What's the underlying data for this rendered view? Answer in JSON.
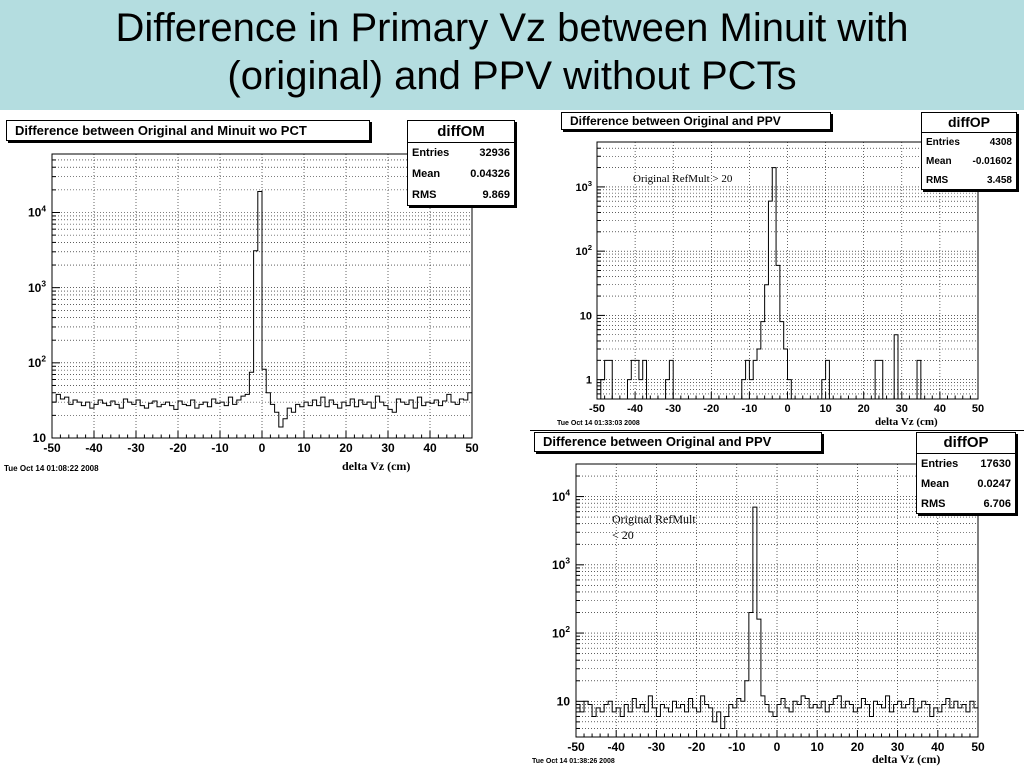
{
  "slide_title_line1": "Difference in Primary Vz between Minuit with",
  "slide_title_line2": "(original) and PPV without PCTs",
  "colors": {
    "title_band": "#b4dde0",
    "axes": "#000000",
    "grid": "#000000"
  },
  "chart_data": [
    {
      "type": "histogram",
      "title": "Difference between Original and Minuit wo PCT",
      "xlabel": "delta Vz (cm)",
      "ylabel": "",
      "xlim": [
        -50,
        50
      ],
      "ylim": [
        10,
        60000
      ],
      "y_scale": "log",
      "grid": true,
      "timestamp": "Tue Oct 14 01:08:22 2008",
      "annotation": "",
      "x_tick_labels": [
        "-50",
        "-40",
        "-30",
        "-20",
        "-10",
        "0",
        "10",
        "20",
        "30",
        "40",
        "50"
      ],
      "y_ticks": [
        {
          "base": "10",
          "exp": ""
        },
        {
          "base": "10",
          "exp": "2"
        },
        {
          "base": "10",
          "exp": "3"
        },
        {
          "base": "10",
          "exp": "4"
        }
      ],
      "stats": {
        "name": "diffOM",
        "entries_label": "Entries",
        "entries": "32936",
        "mean_label": "Mean",
        "mean": "0.04326",
        "rms_label": "RMS",
        "rms": "9.869"
      },
      "bin_width": 1,
      "values": [
        30,
        38,
        33,
        35,
        28,
        32,
        30,
        27,
        30,
        25,
        28,
        32,
        29,
        27,
        31,
        28,
        25,
        33,
        30,
        28,
        32,
        27,
        25,
        29,
        31,
        26,
        28,
        30,
        27,
        24,
        31,
        28,
        27,
        32,
        25,
        28,
        30,
        26,
        33,
        29,
        30,
        27,
        35,
        28,
        32,
        36,
        38,
        75,
        3100,
        19000,
        82,
        40,
        28,
        22,
        14,
        18,
        25,
        22,
        28,
        26,
        30,
        27,
        32,
        27,
        35,
        26,
        32,
        28,
        25,
        30,
        27,
        33,
        26,
        32,
        28,
        30,
        25,
        36,
        30,
        27,
        24,
        22,
        33,
        30,
        28,
        32,
        25,
        35,
        27,
        30,
        29,
        32,
        27,
        31,
        38,
        30,
        28,
        33,
        32,
        40
      ]
    },
    {
      "type": "histogram",
      "title": "Difference between Original and PPV",
      "xlabel": "delta Vz (cm)",
      "ylabel": "",
      "xlim": [
        -50,
        50
      ],
      "ylim": [
        0.5,
        5000
      ],
      "y_scale": "log",
      "grid": true,
      "timestamp": "Tue Oct 14 01:33:03 2008",
      "annotation": "Original RefMult > 20",
      "x_tick_labels": [
        "-50",
        "-40",
        "-30",
        "-20",
        "-10",
        "0",
        "10",
        "20",
        "30",
        "40",
        "50"
      ],
      "y_ticks": [
        {
          "base": "1",
          "exp": ""
        },
        {
          "base": "10",
          "exp": ""
        },
        {
          "base": "10",
          "exp": "2"
        },
        {
          "base": "10",
          "exp": "3"
        }
      ],
      "stats": {
        "name": "diffOP",
        "entries_label": "Entries",
        "entries": "4308",
        "mean_label": "Mean",
        "mean": "-0.01602",
        "rms_label": "RMS",
        "rms": "3.458"
      },
      "bin_width": 1,
      "values": [
        0,
        1,
        2,
        2,
        0,
        0,
        0,
        0,
        1,
        2,
        2,
        1,
        2,
        0,
        0,
        0,
        0,
        0,
        1,
        2,
        0,
        0,
        0,
        0,
        0,
        0,
        0,
        0,
        0,
        0,
        0,
        0,
        0,
        0,
        0,
        0,
        0,
        0,
        1,
        2,
        1,
        2,
        3,
        8,
        30,
        600,
        2000,
        60,
        8,
        3,
        1,
        0,
        0,
        0,
        0,
        0,
        0,
        0,
        0,
        1,
        2,
        0,
        0,
        0,
        0,
        0,
        0,
        0,
        0,
        0,
        0,
        0,
        0,
        2,
        2,
        0,
        0,
        0,
        5,
        0,
        0,
        0,
        0,
        0,
        2,
        0,
        0,
        0,
        0,
        0,
        0,
        0,
        0,
        0,
        0,
        0,
        0,
        0,
        0,
        0
      ]
    },
    {
      "type": "histogram",
      "title": "Difference between Original and PPV",
      "xlabel": "delta Vz (cm)",
      "ylabel": "",
      "xlim": [
        -50,
        50
      ],
      "ylim": [
        3,
        30000
      ],
      "y_scale": "log",
      "grid": true,
      "timestamp": "Tue Oct 14 01:38:26 2008",
      "annotation": "Original RefMult\n< 20",
      "x_tick_labels": [
        "-50",
        "-40",
        "-30",
        "-20",
        "-10",
        "0",
        "10",
        "20",
        "30",
        "40",
        "50"
      ],
      "y_ticks": [
        {
          "base": "10",
          "exp": ""
        },
        {
          "base": "10",
          "exp": "2"
        },
        {
          "base": "10",
          "exp": "3"
        },
        {
          "base": "10",
          "exp": "4"
        }
      ],
      "stats": {
        "name": "diffOP",
        "entries_label": "Entries",
        "entries": "17630",
        "mean_label": "Mean",
        "mean": "0.0247",
        "rms_label": "RMS",
        "rms": "6.706"
      },
      "bin_width": 1,
      "values": [
        9,
        7,
        10,
        9,
        6,
        8,
        7,
        9,
        10,
        7,
        8,
        6,
        9,
        7,
        11,
        8,
        9,
        7,
        12,
        8,
        6,
        9,
        8,
        7,
        10,
        8,
        9,
        7,
        11,
        8,
        7,
        12,
        9,
        8,
        5,
        7,
        4,
        6,
        9,
        8,
        11,
        10,
        20,
        200,
        7000,
        160,
        12,
        9,
        7,
        6,
        9,
        11,
        8,
        7,
        10,
        9,
        12,
        11,
        8,
        9,
        8,
        10,
        7,
        9,
        11,
        12,
        8,
        10,
        9,
        7,
        8,
        11,
        9,
        6,
        10,
        9,
        8,
        12,
        7,
        9,
        10,
        8,
        9,
        11,
        7,
        8,
        10,
        9,
        6,
        8,
        7,
        9,
        11,
        8,
        10,
        8,
        9,
        7,
        10,
        8
      ]
    }
  ]
}
